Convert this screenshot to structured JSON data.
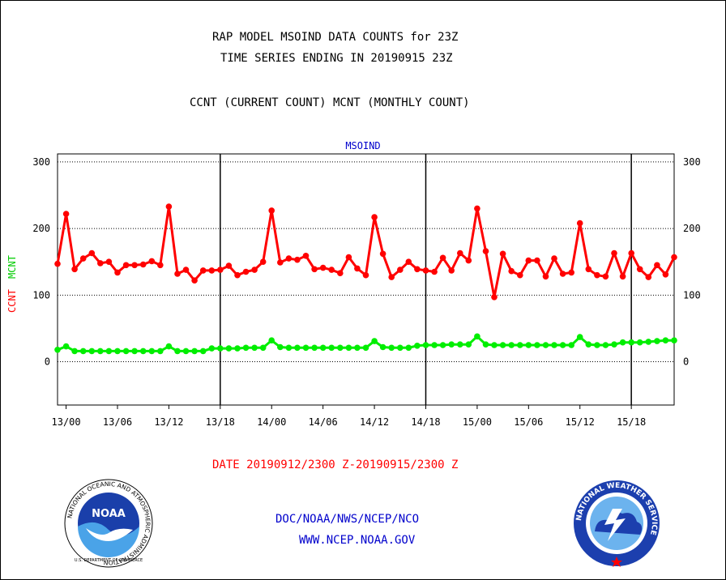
{
  "header": {
    "title_line1": "RAP MODEL MSOIND DATA COUNTS for 23Z",
    "title_line2": "TIME SERIES ENDING IN 20190915 23Z",
    "subtitle": "CCNT (CURRENT COUNT) MCNT (MONTHLY COUNT)"
  },
  "footer": {
    "date_range": "DATE 20190912/2300 Z-20190915/2300 Z",
    "org": "DOC/NOAA/NWS/NCEP/NCO",
    "url": "WWW.NCEP.NOAA.GOV"
  },
  "logos": {
    "noaa_text": "NOAA",
    "noaa_ring": "NATIONAL OCEANIC AND ATMOSPHERIC ADMINISTRATION",
    "noaa_bottom": "U.S. DEPARTMENT OF COMMERCE",
    "nws_ring": "NATIONAL WEATHER SERVICE"
  },
  "colors": {
    "ccnt": "#ff0000",
    "mcnt": "#00ee00",
    "panel_label": "#0000cc"
  },
  "chart_data": {
    "type": "line",
    "panel_label": "MSOIND",
    "ylabel_ccnt": "CCNT",
    "ylabel_mcnt": "MCNT",
    "ylim": [
      -65,
      312
    ],
    "yticks": [
      0,
      100,
      200,
      300
    ],
    "ytick_labels": [
      "0",
      "100",
      "200",
      "300"
    ],
    "xticks": [
      "13/00",
      "13/06",
      "13/12",
      "13/18",
      "14/00",
      "14/06",
      "14/12",
      "14/18",
      "15/00",
      "15/06",
      "15/12",
      "15/18"
    ],
    "xlim_hours": [
      -1,
      71
    ],
    "x_hours_start": -1,
    "day_dividers_hours": [
      18,
      42,
      66
    ],
    "grid": "horizontal dotted",
    "series": [
      {
        "name": "CCNT",
        "values": [
          147,
          222,
          139,
          155,
          163,
          148,
          150,
          134,
          145,
          145,
          146,
          151,
          145,
          233,
          132,
          138,
          122,
          137,
          137,
          138,
          144,
          130,
          135,
          138,
          150,
          227,
          149,
          155,
          153,
          159,
          139,
          141,
          138,
          133,
          157,
          140,
          130,
          217,
          162,
          127,
          138,
          150,
          139,
          137,
          135,
          156,
          137,
          163,
          152,
          230,
          166,
          97,
          162,
          136,
          130,
          152,
          152,
          128,
          155,
          132,
          134,
          208,
          139,
          130,
          128,
          163,
          128,
          163,
          139,
          127,
          145,
          131,
          157
        ]
      },
      {
        "name": "MCNT",
        "values": [
          18,
          23,
          16,
          16,
          16,
          16,
          16,
          16,
          16,
          16,
          16,
          16,
          16,
          23,
          16,
          16,
          16,
          16,
          20,
          20,
          20,
          20,
          21,
          21,
          21,
          32,
          22,
          21,
          21,
          21,
          21,
          21,
          21,
          21,
          21,
          21,
          21,
          31,
          22,
          21,
          21,
          21,
          24,
          25,
          25,
          25,
          26,
          26,
          26,
          38,
          26,
          25,
          25,
          25,
          25,
          25,
          25,
          25,
          25,
          25,
          25,
          37,
          26,
          25,
          25,
          26,
          29,
          29,
          29,
          30,
          31,
          32,
          32
        ]
      }
    ]
  }
}
